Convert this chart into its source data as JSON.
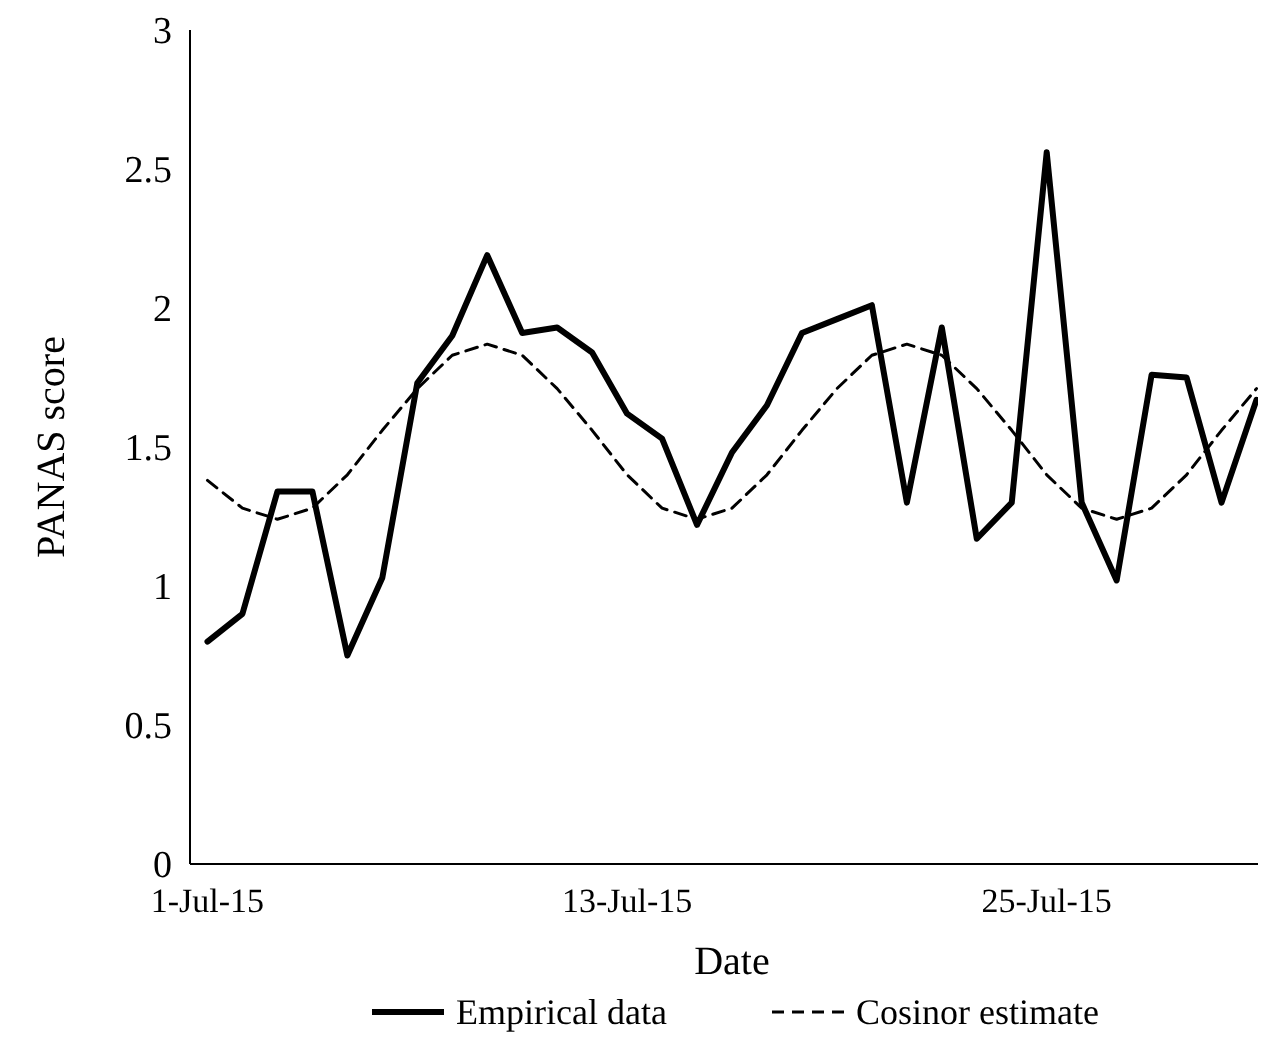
{
  "chart_data": {
    "type": "line",
    "xlabel": "Date",
    "ylabel": "PANAS score",
    "categories": [
      "1-Jul-15",
      null,
      null,
      null,
      null,
      null,
      null,
      null,
      null,
      null,
      null,
      null,
      "13-Jul-15",
      null,
      null,
      null,
      null,
      null,
      null,
      null,
      null,
      null,
      null,
      null,
      "25-Jul-15",
      null,
      null,
      null,
      null,
      null,
      null
    ],
    "series": [
      {
        "name": "Empirical data",
        "color": "#000000",
        "line_style": "solid",
        "values": [
          0.8,
          0.9,
          1.34,
          1.34,
          0.75,
          1.03,
          1.73,
          1.9,
          2.19,
          1.91,
          1.93,
          1.84,
          1.62,
          1.53,
          1.22,
          1.48,
          1.65,
          1.91,
          1.96,
          2.01,
          1.3,
          1.93,
          1.17,
          1.3,
          2.56,
          1.3,
          1.02,
          1.76,
          1.75,
          1.3,
          1.67
        ]
      },
      {
        "name": "Cosinor estimate",
        "color": "#000000",
        "line_style": "dashed",
        "values": [
          1.38,
          1.28,
          1.24,
          1.28,
          1.4,
          1.56,
          1.71,
          1.83,
          1.87,
          1.83,
          1.71,
          1.56,
          1.4,
          1.28,
          1.24,
          1.28,
          1.4,
          1.56,
          1.71,
          1.83,
          1.87,
          1.83,
          1.71,
          1.56,
          1.4,
          1.28,
          1.24,
          1.28,
          1.4,
          1.56,
          1.71
        ]
      }
    ],
    "ylim": [
      0,
      3
    ],
    "yticks": [
      0,
      0.5,
      1,
      1.5,
      2,
      2.5,
      3
    ],
    "grid": false,
    "legend": "bottom",
    "marker": "none"
  }
}
